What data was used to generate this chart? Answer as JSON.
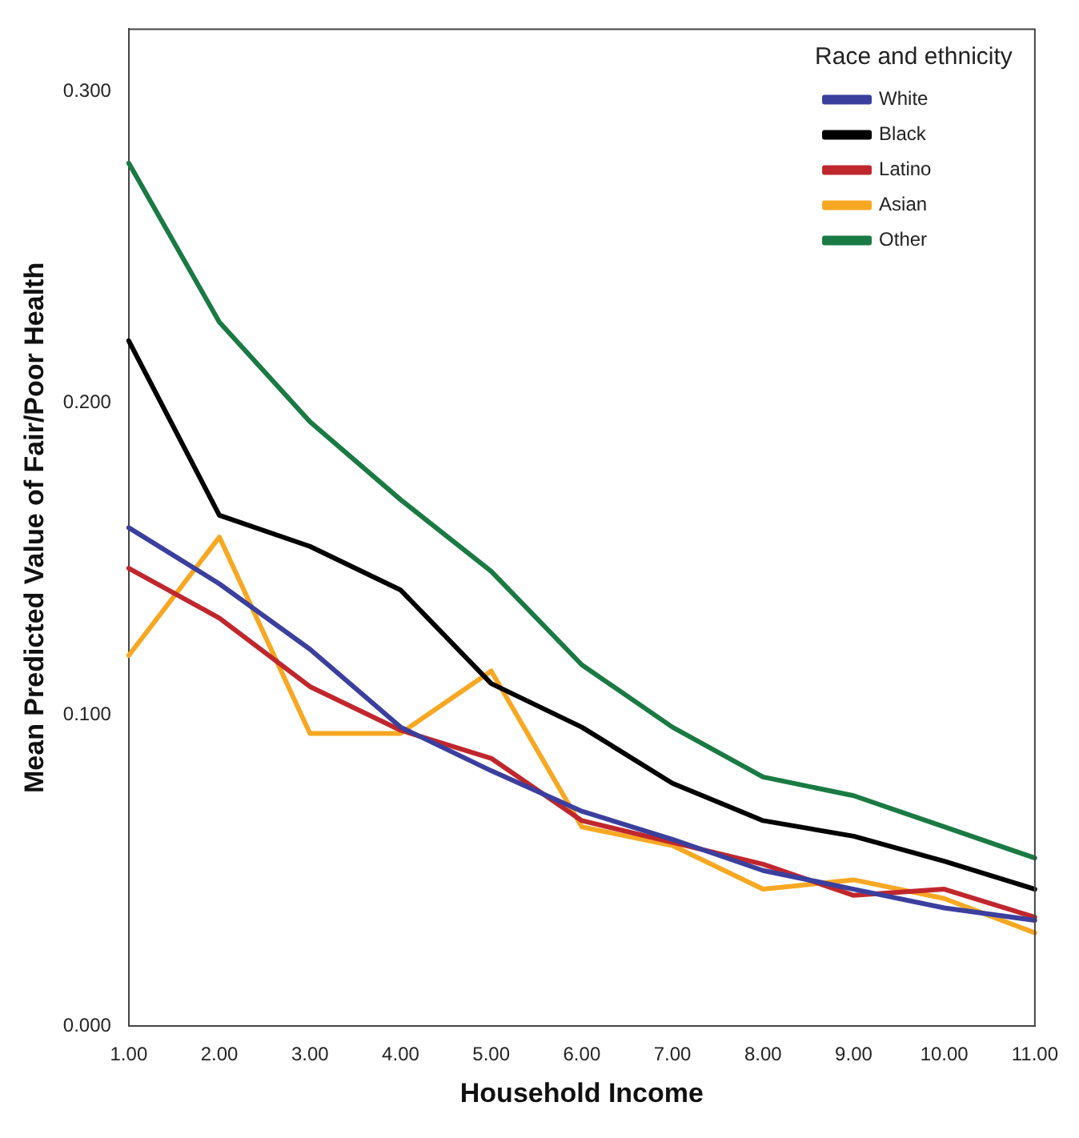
{
  "chart_data": {
    "type": "line",
    "xlabel": "Household Income",
    "ylabel": "Mean Predicted Value of Fair/Poor Health",
    "legend_title": "Race and ethnicity",
    "categories": [
      "1.00",
      "2.00",
      "3.00",
      "4.00",
      "5.00",
      "6.00",
      "7.00",
      "8.00",
      "9.00",
      "10.00",
      "11.00"
    ],
    "series": [
      {
        "name": "White",
        "color": "#3b3f9e",
        "values": [
          0.16,
          0.142,
          0.121,
          0.096,
          0.082,
          0.069,
          0.06,
          0.05,
          0.044,
          0.038,
          0.034
        ]
      },
      {
        "name": "Black",
        "color": "#000000",
        "values": [
          0.22,
          0.164,
          0.154,
          0.14,
          0.11,
          0.096,
          0.078,
          0.066,
          0.061,
          0.053,
          0.044
        ]
      },
      {
        "name": "Latino",
        "color": "#c0272d",
        "values": [
          0.147,
          0.131,
          0.109,
          0.095,
          0.086,
          0.066,
          0.059,
          0.052,
          0.042,
          0.044,
          0.035
        ]
      },
      {
        "name": "Asian",
        "color": "#f7a823",
        "values": [
          0.119,
          0.157,
          0.094,
          0.094,
          0.114,
          0.064,
          0.058,
          0.044,
          0.047,
          0.041,
          0.03
        ]
      },
      {
        "name": "Other",
        "color": "#1a7a43",
        "values": [
          0.277,
          0.226,
          0.194,
          0.169,
          0.146,
          0.116,
          0.096,
          0.08,
          0.074,
          0.064,
          0.054
        ]
      }
    ],
    "ylim": [
      0,
      0.32
    ],
    "yticks": [
      {
        "value": 0,
        "label": "0.000"
      },
      {
        "value": 0.1,
        "label": "0.100"
      },
      {
        "value": 0.2,
        "label": "0.200"
      },
      {
        "value": 0.3,
        "label": "0.300"
      }
    ],
    "grid": false,
    "legend": "top right",
    "marker": "none",
    "line_style": "solid"
  }
}
